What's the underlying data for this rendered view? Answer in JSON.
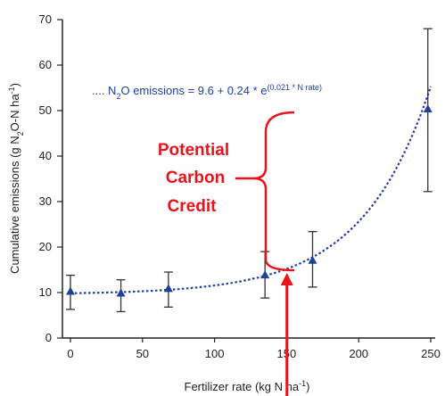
{
  "chart_data": {
    "type": "scatter",
    "title": "",
    "xlabel": "Fertilizer rate (kg N ha",
    "xlabel_sup": "-1",
    "xlabel_tail": ")",
    "ylabel_parts": [
      "Cumulative emissions (g N",
      "2",
      "O-N ha",
      "-1",
      ")"
    ],
    "xlim": [
      0,
      250
    ],
    "ylim": [
      0,
      70
    ],
    "xticks": [
      0,
      50,
      100,
      150,
      200,
      250
    ],
    "yticks": [
      0,
      10,
      20,
      30,
      40,
      50,
      60,
      70
    ],
    "grid": false,
    "series": [
      {
        "x": [
          0,
          35,
          68,
          135,
          168,
          248
        ],
        "y": [
          10.2,
          9.8,
          10.8,
          13.8,
          17.0,
          50.3
        ],
        "err_low": [
          6.3,
          5.8,
          6.8,
          8.8,
          11.2,
          32.2
        ],
        "err_high": [
          13.8,
          12.8,
          14.5,
          19.0,
          23.4,
          68.0
        ]
      }
    ],
    "fit_curve": {
      "equation_prefix": ".... N",
      "equation_sub": "2",
      "equation_main": "O emissions = 9.6 + 0.24 * e",
      "equation_sup": "(0.021 * N rate)",
      "a": 9.6,
      "b": 0.24,
      "k": 0.021
    },
    "annotations": {
      "credit_lines": [
        "Potential",
        "Carbon",
        "Credit"
      ],
      "bracket_from_y": 14.5,
      "bracket_to_y": 50,
      "arrow_x": 157
    },
    "colors": {
      "markers": "#1f3f99",
      "fit_line": "#1f3fa8",
      "annotation": "#e8141b",
      "axis": "#222222"
    }
  }
}
